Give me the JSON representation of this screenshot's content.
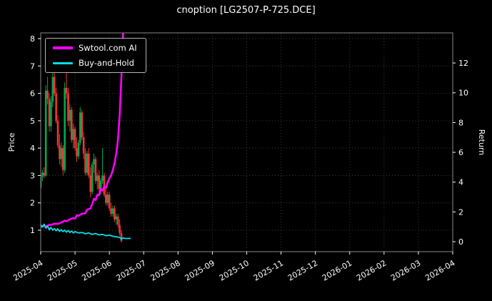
{
  "title": "cnoption [LG2507-P-725.DCE]",
  "colors": {
    "background": "#000000",
    "text": "#ffffff",
    "grid": "#3a3a3a",
    "spine": "#8a8a8a",
    "candle_up": "#00a84e",
    "candle_down": "#f23535",
    "ai_line": "#ff00ff",
    "buy_hold_line": "#00e0e8"
  },
  "legend": {
    "items": [
      {
        "label": "Swtool.com AI",
        "color": "#ff00ff"
      },
      {
        "label": "Buy-and-Hold",
        "color": "#00e0e8"
      }
    ]
  },
  "chart_data": {
    "type": "candlestick-with-lines",
    "title": "cnoption [LG2507-P-725.DCE]",
    "x_axis": {
      "tick_labels": [
        "2025-04",
        "2025-05",
        "2025-06",
        "2025-07",
        "2025-08",
        "2025-09",
        "2025-10",
        "2025-11",
        "2025-12",
        "2026-01",
        "2026-02",
        "2026-03",
        "2026-04"
      ],
      "range_months": [
        0,
        12
      ],
      "grid": true
    },
    "y_left": {
      "label": "Price",
      "ticks": [
        1,
        2,
        3,
        4,
        5,
        6,
        7,
        8
      ],
      "range": [
        0.217,
        8.209
      ],
      "grid": true
    },
    "y_right": {
      "label": "Return",
      "ticks": [
        0,
        2,
        4,
        6,
        8,
        10,
        12
      ],
      "range": [
        -0.67,
        14.02
      ],
      "grid": false
    },
    "legend_position": "upper-left",
    "candles_ohlc_t": [
      [
        0.0,
        2.55,
        3.05,
        2.45,
        2.95
      ],
      [
        0.05,
        2.95,
        3.2,
        2.8,
        3.1
      ],
      [
        0.1,
        3.1,
        3.3,
        2.9,
        3.0
      ],
      [
        0.15,
        3.0,
        6.3,
        2.95,
        6.1
      ],
      [
        0.2,
        6.1,
        6.6,
        5.6,
        5.8
      ],
      [
        0.25,
        5.8,
        6.0,
        4.6,
        4.8
      ],
      [
        0.3,
        4.8,
        5.9,
        4.6,
        5.7
      ],
      [
        0.35,
        5.7,
        6.9,
        5.5,
        6.6
      ],
      [
        0.4,
        6.6,
        6.8,
        5.9,
        6.0
      ],
      [
        0.45,
        6.0,
        6.2,
        4.9,
        5.0
      ],
      [
        0.5,
        5.0,
        5.2,
        4.0,
        4.1
      ],
      [
        0.55,
        4.1,
        4.5,
        3.4,
        3.6
      ],
      [
        0.6,
        3.6,
        4.2,
        3.3,
        4.0
      ],
      [
        0.65,
        4.0,
        4.1,
        3.0,
        3.2
      ],
      [
        0.7,
        3.2,
        6.4,
        3.1,
        6.2
      ],
      [
        0.75,
        6.2,
        7.9,
        5.8,
        6.0
      ],
      [
        0.8,
        6.0,
        6.2,
        4.8,
        5.0
      ],
      [
        0.85,
        5.0,
        5.6,
        4.6,
        5.4
      ],
      [
        0.9,
        5.4,
        5.5,
        4.2,
        4.3
      ],
      [
        0.95,
        4.3,
        4.9,
        4.0,
        4.7
      ],
      [
        1.0,
        4.7,
        4.8,
        3.9,
        4.0
      ],
      [
        1.05,
        4.0,
        4.4,
        3.5,
        3.7
      ],
      [
        1.1,
        3.7,
        4.3,
        3.6,
        4.2
      ],
      [
        1.15,
        4.2,
        5.5,
        4.1,
        5.3
      ],
      [
        1.2,
        5.3,
        5.4,
        4.3,
        4.4
      ],
      [
        1.25,
        4.4,
        4.6,
        3.6,
        3.8
      ],
      [
        1.3,
        3.8,
        4.0,
        3.0,
        3.1
      ],
      [
        1.35,
        3.1,
        3.9,
        3.0,
        3.8
      ],
      [
        1.4,
        3.8,
        4.0,
        2.9,
        3.0
      ],
      [
        1.45,
        3.0,
        3.3,
        2.2,
        2.4
      ],
      [
        1.5,
        2.4,
        3.5,
        2.3,
        3.4
      ],
      [
        1.55,
        3.4,
        3.8,
        3.1,
        3.6
      ],
      [
        1.6,
        3.6,
        3.7,
        2.7,
        2.8
      ],
      [
        1.65,
        2.8,
        3.1,
        2.5,
        3.0
      ],
      [
        1.7,
        3.0,
        3.2,
        2.4,
        2.5
      ],
      [
        1.75,
        2.5,
        2.9,
        2.3,
        2.8
      ],
      [
        1.8,
        2.8,
        4.0,
        2.7,
        3.0
      ],
      [
        1.85,
        3.0,
        3.1,
        2.2,
        2.3
      ],
      [
        1.9,
        2.3,
        2.6,
        1.9,
        2.0
      ],
      [
        1.95,
        2.0,
        2.4,
        1.9,
        2.3
      ],
      [
        2.0,
        2.3,
        2.4,
        1.7,
        1.8
      ],
      [
        2.05,
        1.8,
        2.0,
        1.5,
        1.6
      ],
      [
        2.1,
        1.6,
        1.9,
        1.5,
        1.8
      ],
      [
        2.15,
        1.8,
        1.9,
        1.3,
        1.4
      ],
      [
        2.2,
        1.4,
        1.6,
        1.2,
        1.5
      ],
      [
        2.25,
        1.5,
        1.6,
        1.1,
        1.2
      ],
      [
        2.3,
        1.2,
        1.4,
        0.8,
        0.9
      ],
      [
        2.35,
        0.9,
        1.0,
        0.55,
        0.6
      ]
    ],
    "series": [
      {
        "name": "Swtool.com AI",
        "color": "#ff00ff",
        "width": 2.6,
        "x": [
          0,
          0.08,
          0.15,
          0.25,
          0.3,
          0.4,
          0.5,
          0.6,
          0.7,
          0.75,
          0.85,
          0.95,
          1.0,
          1.05,
          1.1,
          1.2,
          1.3,
          1.35,
          1.45,
          1.5,
          1.55,
          1.6,
          1.65,
          1.7,
          1.75,
          1.8,
          1.85,
          1.9,
          1.95,
          2.0,
          2.05,
          2.1,
          2.15,
          2.2,
          2.25,
          2.3,
          2.33,
          2.36,
          2.39,
          2.42,
          2.5,
          2.62
        ],
        "y": [
          1.12,
          1.15,
          1.14,
          1.2,
          1.19,
          1.24,
          1.23,
          1.28,
          1.35,
          1.33,
          1.4,
          1.45,
          1.42,
          1.55,
          1.53,
          1.6,
          1.62,
          1.75,
          1.8,
          1.95,
          2.15,
          2.1,
          2.3,
          2.28,
          2.5,
          2.45,
          2.6,
          2.55,
          2.75,
          2.9,
          3.0,
          3.2,
          3.45,
          3.8,
          4.3,
          5.2,
          6.0,
          6.9,
          7.8,
          9.0,
          10.5,
          11.0
        ]
      },
      {
        "name": "Buy-and-Hold",
        "color": "#00e0e8",
        "width": 1.8,
        "x": [
          0,
          0.05,
          0.1,
          0.15,
          0.2,
          0.25,
          0.3,
          0.35,
          0.4,
          0.45,
          0.5,
          0.55,
          0.6,
          0.65,
          0.7,
          0.75,
          0.8,
          0.85,
          0.9,
          0.95,
          1.0,
          1.1,
          1.2,
          1.3,
          1.4,
          1.5,
          1.6,
          1.7,
          1.8,
          1.9,
          2.0,
          2.1,
          2.2,
          2.3,
          2.35,
          2.4,
          2.45,
          2.55,
          2.62
        ],
        "y": [
          1.2,
          1.12,
          1.22,
          1.08,
          1.15,
          1.02,
          1.1,
          1.0,
          1.06,
          0.98,
          1.05,
          0.96,
          1.02,
          0.95,
          1.0,
          0.93,
          0.99,
          0.92,
          0.97,
          0.9,
          0.95,
          0.9,
          0.92,
          0.87,
          0.9,
          0.85,
          0.88,
          0.83,
          0.85,
          0.8,
          0.82,
          0.78,
          0.76,
          0.74,
          0.68,
          0.72,
          0.7,
          0.7,
          0.7
        ]
      }
    ]
  }
}
